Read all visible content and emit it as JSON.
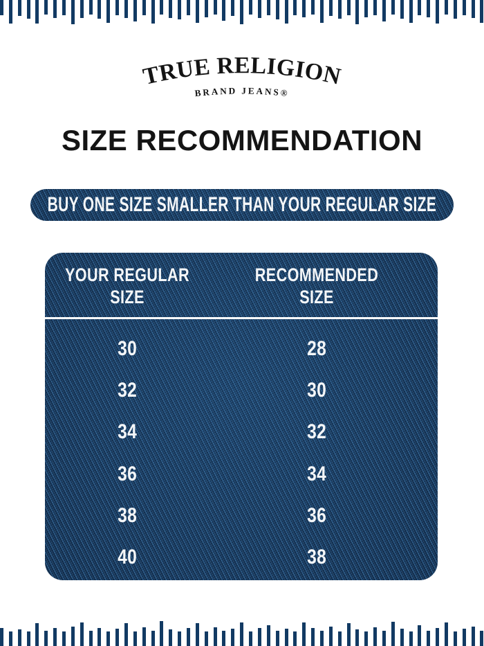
{
  "brand": {
    "name": "TRUE RELIGION",
    "tagline": "BRAND JEANS®"
  },
  "page_title": "SIZE RECOMMENDATION",
  "banner": {
    "text": "BUY ONE SIZE SMALLER THAN YOUR REGULAR SIZE"
  },
  "table": {
    "columns": [
      "YOUR REGULAR SIZE",
      "RECOMMENDED SIZE"
    ],
    "rows": [
      [
        "30",
        "28"
      ],
      [
        "32",
        "30"
      ],
      [
        "34",
        "32"
      ],
      [
        "36",
        "34"
      ],
      [
        "38",
        "36"
      ],
      [
        "40",
        "38"
      ]
    ]
  },
  "colors": {
    "tick_navy": "#123a63",
    "denim_base": "#17395f",
    "text_on_denim": "#f4f6f8",
    "heading_ink": "#141414",
    "background": "#ffffff"
  },
  "decor": {
    "top_ticks": [
      22,
      34,
      23,
      27,
      34,
      21,
      26,
      22,
      35,
      26,
      21,
      27,
      33,
      22,
      26,
      31,
      22,
      34,
      21,
      26,
      28,
      22,
      33,
      25,
      21,
      30,
      23,
      35,
      21,
      26,
      22,
      28,
      34,
      22,
      25,
      21,
      33,
      23,
      27,
      22,
      35,
      25,
      22,
      31,
      21,
      27,
      33,
      22,
      25,
      34,
      21,
      27,
      22,
      26,
      33
    ],
    "bottom_ticks": [
      26,
      21,
      24,
      21,
      33,
      22,
      26,
      21,
      28,
      34,
      22,
      26,
      21,
      25,
      33,
      21,
      27,
      22,
      36,
      24,
      21,
      26,
      33,
      21,
      27,
      22,
      25,
      34,
      21,
      26,
      30,
      22,
      25,
      21,
      34,
      26,
      22,
      28,
      21,
      33,
      24,
      21,
      27,
      22,
      35,
      25,
      21,
      30,
      22,
      26,
      34,
      21,
      25,
      28,
      22
    ]
  }
}
